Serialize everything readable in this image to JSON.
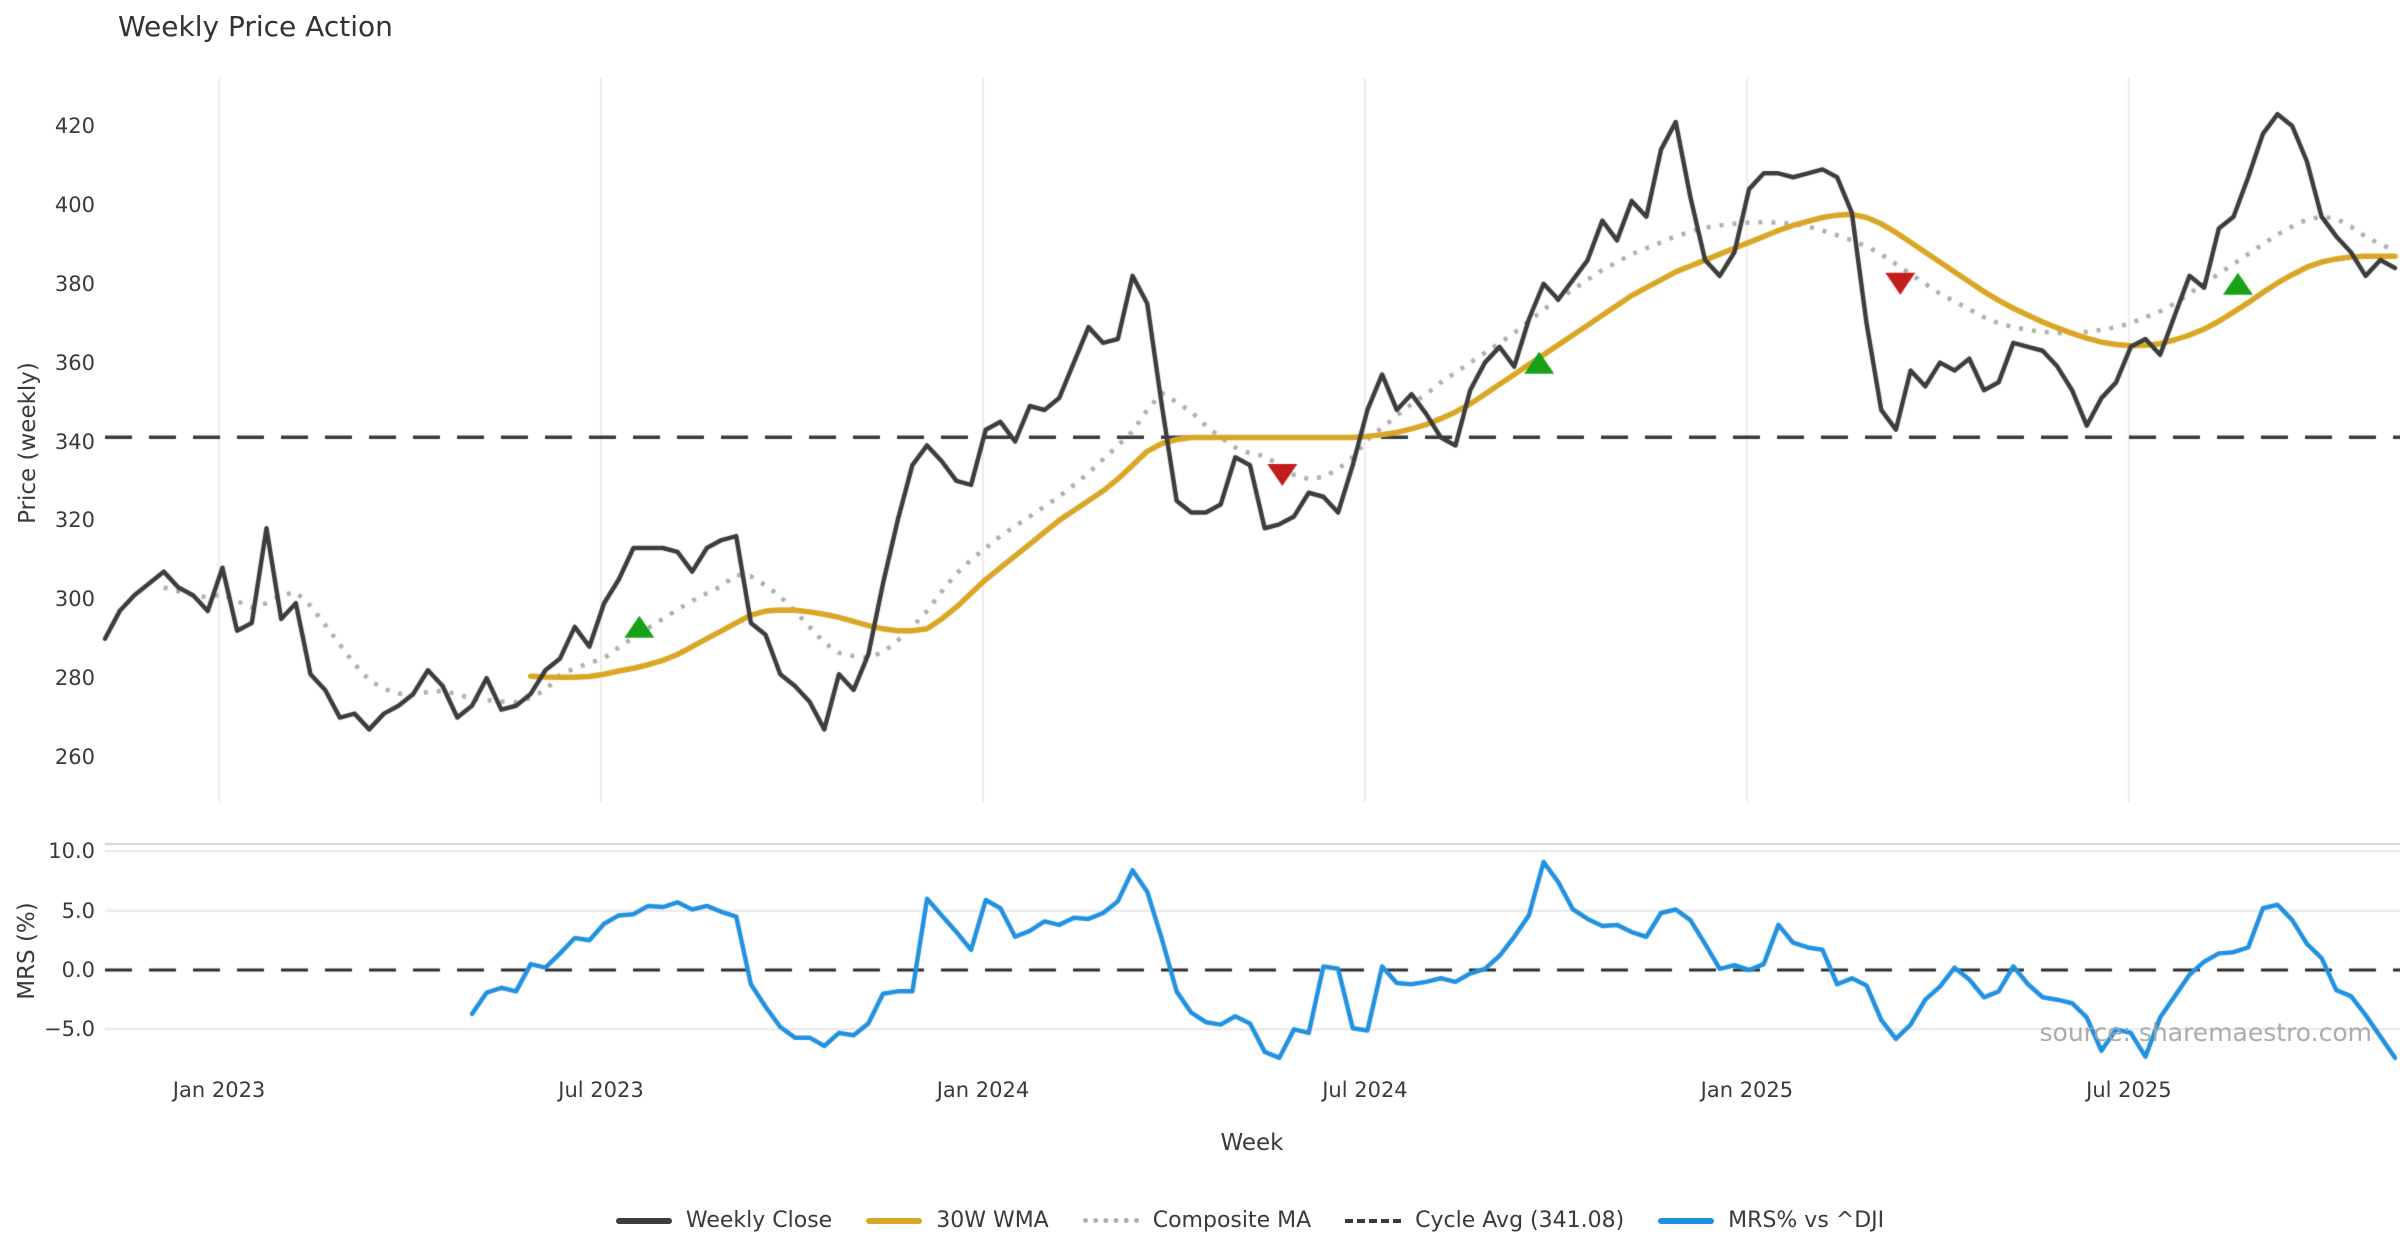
{
  "title": "Weekly Price Action",
  "watermark": "source: sharemaestro.com",
  "colors": {
    "text": "#3a3a3a",
    "weekly_close": "#3d3d3d",
    "wma_30w": "#d9a625",
    "composite_ma": "#b0b0b0",
    "cycle_avg": "#3a3a3a",
    "mrs_line": "#2191e0",
    "buy_marker": "#18a018",
    "sell_marker": "#c41b1b",
    "grid_price": "#ececf0",
    "grid_mrs": "#e7e7ec",
    "mrs_top_spine": "#d2d2d7"
  },
  "price_panel": {
    "ylabel": "Price (weekly)",
    "yticks": [
      420,
      400,
      380,
      360,
      340,
      320,
      300,
      280,
      260
    ],
    "cycle_avg_value": 341.08
  },
  "mrs_panel": {
    "ylabel": "MRS (%)",
    "yticks": [
      10.0,
      5.0,
      0.0,
      -5.0
    ],
    "ytick_labels": [
      "10.0",
      "5.0",
      "0.0",
      "−5.0"
    ],
    "zero_line": 0.0
  },
  "x_axis": {
    "label": "Week",
    "ticks": [
      {
        "label": "Jan 2023",
        "week": 7.77
      },
      {
        "label": "Jul 2023",
        "week": 33.79
      },
      {
        "label": "Jan 2024",
        "week": 59.81
      },
      {
        "label": "Jul 2024",
        "week": 85.83
      },
      {
        "label": "Jan 2025",
        "week": 111.85
      },
      {
        "label": "Jul 2025",
        "week": 137.87
      }
    ]
  },
  "legend": {
    "items": [
      {
        "label": "Weekly Close",
        "style": "solid",
        "color": "#3d3d3d"
      },
      {
        "label": "30W WMA",
        "style": "solid",
        "color": "#d9a625"
      },
      {
        "label": "Composite MA",
        "style": "dotted",
        "color": "#b0b0b0"
      },
      {
        "label": "Cycle Avg (341.08)",
        "style": "dashed",
        "color": "#3a3a3a"
      },
      {
        "label": "MRS% vs ^DJI",
        "style": "solid",
        "color": "#2191e0"
      }
    ]
  },
  "chart_data": {
    "type": "line",
    "title": "Weekly Price Action",
    "xlabel": "Week",
    "x_unit": "week_index",
    "n_weeks": 157,
    "x_range_dates": [
      "Nov 2022",
      "Oct 2025"
    ],
    "panels": [
      {
        "name": "price",
        "ylabel": "Price (weekly)",
        "ylim": [
          255,
          433
        ],
        "grid": "vertical",
        "series_names": [
          "weekly_close",
          "wma_30w",
          "composite_ma"
        ],
        "hline": 341.08,
        "legend_position": "bottom"
      },
      {
        "name": "mrs",
        "ylabel": "MRS (%)",
        "ylim": [
          -8.5,
          10.5
        ],
        "grid": "horizontal",
        "series_names": [
          "mrs_pct"
        ],
        "hline": 0.0
      }
    ],
    "series": {
      "weekly_close": [
        290,
        297,
        301,
        304,
        307,
        303,
        301,
        297,
        308,
        292,
        294,
        318,
        295,
        299,
        281,
        277,
        270,
        271,
        267,
        271,
        273,
        276,
        282,
        278,
        270,
        273,
        280,
        272,
        273,
        276,
        282,
        285,
        293,
        288,
        299,
        305,
        313,
        313,
        313,
        312,
        307,
        313,
        315,
        316,
        294,
        291,
        281,
        278,
        274,
        267,
        281,
        277,
        286,
        304,
        320,
        334,
        339,
        335,
        330,
        329,
        343,
        345,
        340,
        349,
        348,
        351,
        360,
        369,
        365,
        366,
        382,
        375,
        349,
        325,
        322,
        322,
        324,
        336,
        334,
        318,
        319,
        321,
        327,
        326,
        322,
        334,
        348,
        357,
        348,
        352,
        347,
        341,
        339,
        353,
        360,
        364,
        359,
        371,
        380,
        376,
        381,
        386,
        396,
        391,
        401,
        397,
        414,
        421,
        402,
        386,
        382,
        388,
        404,
        408,
        408,
        407,
        408,
        409,
        407,
        398,
        370,
        348,
        343,
        358,
        354,
        360,
        358,
        361,
        353,
        355,
        365,
        364,
        363,
        359,
        353,
        344,
        351,
        355,
        364,
        366,
        362,
        372,
        382,
        379,
        394,
        397,
        407,
        418,
        423,
        420,
        411,
        397,
        392,
        388,
        382,
        386,
        384
      ],
      "wma_30w": [
        null,
        null,
        null,
        null,
        null,
        null,
        null,
        null,
        null,
        null,
        null,
        null,
        null,
        null,
        null,
        null,
        null,
        null,
        null,
        null,
        null,
        null,
        null,
        null,
        null,
        null,
        null,
        null,
        null,
        280.5,
        280.3,
        280.2,
        280.2,
        280.4,
        281,
        281.8,
        282.5,
        283.4,
        284.5,
        286,
        288,
        290,
        292,
        294,
        296,
        297,
        297.3,
        297.2,
        296.8,
        296.2,
        295.4,
        294.4,
        293.3,
        292.5,
        292,
        292,
        292.5,
        295,
        298,
        301.5,
        305,
        308,
        311,
        314,
        317,
        320,
        322.5,
        325,
        327.5,
        330.5,
        334,
        337.5,
        339.5,
        340.5,
        341,
        341,
        341,
        341,
        341,
        341,
        341,
        341,
        341,
        341,
        341,
        341,
        341.3,
        341.7,
        342.3,
        343.2,
        344.3,
        345.8,
        347.5,
        349.5,
        352,
        354.5,
        357,
        359.5,
        362,
        364.5,
        367,
        369.5,
        372,
        374.5,
        377,
        379,
        381,
        383,
        384.5,
        386,
        387.5,
        389,
        390.5,
        392,
        393.5,
        394.8,
        395.8,
        396.8,
        397.4,
        397.6,
        396.8,
        395.2,
        393,
        390.5,
        388,
        385.5,
        383,
        380.5,
        378,
        375.8,
        373.8,
        372,
        370.3,
        368.8,
        367.4,
        366.2,
        365.2,
        364.6,
        364.3,
        364.4,
        364.8,
        365.8,
        367,
        368.5,
        370.5,
        372.8,
        375.2,
        377.8,
        380.2,
        382.3,
        384.2,
        385.5,
        386.3,
        386.8,
        387,
        387,
        387
      ],
      "composite_ma": [
        null,
        null,
        null,
        null,
        303,
        302,
        301,
        300.5,
        301.3,
        299.5,
        298,
        299,
        301,
        301.8,
        298.3,
        293.5,
        288.5,
        283.6,
        279.5,
        277.3,
        276.1,
        275.8,
        276.5,
        276.8,
        275.9,
        274.8,
        274.4,
        274.1,
        273.9,
        275,
        277,
        280.8,
        282.5,
        283.8,
        285,
        287.8,
        290.3,
        292.7,
        295,
        297.4,
        299.6,
        301.5,
        303.3,
        306.2,
        305.8,
        303.5,
        300.7,
        297,
        293,
        289,
        286.4,
        285.6,
        285.2,
        286.6,
        289.5,
        293,
        297,
        302,
        306.5,
        310,
        313,
        316,
        318.5,
        321,
        323.5,
        326,
        329,
        332,
        335.5,
        339,
        342.5,
        348,
        352.3,
        350,
        347.5,
        344,
        341,
        338.5,
        337,
        336.3,
        334,
        331.5,
        330.5,
        331,
        333,
        336,
        340.5,
        343.5,
        346.5,
        349.5,
        352,
        355,
        357.5,
        360,
        362.5,
        365,
        367.5,
        370.5,
        373.5,
        376,
        378.5,
        381,
        383.5,
        385.5,
        387.5,
        389,
        390.5,
        392,
        393.2,
        394.2,
        394.8,
        395.2,
        395.5,
        395.6,
        395.5,
        395.2,
        394.5,
        393.5,
        392.3,
        391,
        389.5,
        387.5,
        385,
        382.5,
        380,
        377.5,
        375.5,
        373.5,
        371.5,
        370,
        369,
        368.3,
        367.8,
        367.5,
        367.5,
        367.8,
        368.3,
        369,
        370,
        371.5,
        373,
        375,
        377.5,
        380,
        382.5,
        385,
        387.5,
        390,
        392.5,
        394.5,
        396.3,
        397,
        396.5,
        394.5,
        392,
        390,
        388.5
      ],
      "mrs_pct": [
        null,
        null,
        null,
        null,
        null,
        null,
        null,
        null,
        null,
        null,
        null,
        null,
        null,
        null,
        null,
        null,
        null,
        null,
        null,
        null,
        null,
        null,
        null,
        null,
        null,
        -3.7,
        -1.9,
        -1.5,
        -1.8,
        0.5,
        0.2,
        1.4,
        2.7,
        2.5,
        3.9,
        4.6,
        4.7,
        5.4,
        5.3,
        5.7,
        5.1,
        5.4,
        4.9,
        4.5,
        -1.2,
        -3.1,
        -4.8,
        -5.7,
        -5.7,
        -6.4,
        -5.3,
        -5.5,
        -4.5,
        -2.0,
        -1.8,
        -1.8,
        6.0,
        4.6,
        3.2,
        1.7,
        5.9,
        5.2,
        2.8,
        3.3,
        4.1,
        3.8,
        4.4,
        4.3,
        4.8,
        5.8,
        8.4,
        6.6,
        2.6,
        -1.8,
        -3.6,
        -4.4,
        -4.6,
        -3.9,
        -4.5,
        -6.9,
        -7.4,
        -5.0,
        -5.3,
        0.3,
        0.1,
        -4.9,
        -5.1,
        0.3,
        -1.1,
        -1.2,
        -1.0,
        -0.7,
        -1.0,
        -0.3,
        0.1,
        1.2,
        2.8,
        4.6,
        9.1,
        7.4,
        5.1,
        4.3,
        3.7,
        3.8,
        3.2,
        2.8,
        4.8,
        5.1,
        4.2,
        2.2,
        0.1,
        0.4,
        0.0,
        0.5,
        3.8,
        2.3,
        1.9,
        1.7,
        -1.2,
        -0.7,
        -1.3,
        -4.2,
        -5.8,
        -4.6,
        -2.5,
        -1.4,
        0.2,
        -0.8,
        -2.3,
        -1.8,
        0.3,
        -1.2,
        -2.3,
        -2.5,
        -2.8,
        -4.0,
        -6.8,
        -5.0,
        -5.3,
        -7.3,
        -4.0,
        -2.2,
        -0.4,
        0.7,
        1.4,
        1.5,
        1.9,
        5.2,
        5.5,
        4.2,
        2.2,
        1.0,
        -1.7,
        -2.2,
        -3.8,
        -5.6,
        -7.4
      ]
    },
    "markers": {
      "buy": [
        {
          "week": 36.4,
          "price": 293
        },
        {
          "week": 97.7,
          "price": 360
        },
        {
          "week": 145.3,
          "price": 380
        }
      ],
      "sell": [
        {
          "week": 80.2,
          "price": 331.5
        },
        {
          "week": 122.3,
          "price": 380
        }
      ]
    }
  }
}
